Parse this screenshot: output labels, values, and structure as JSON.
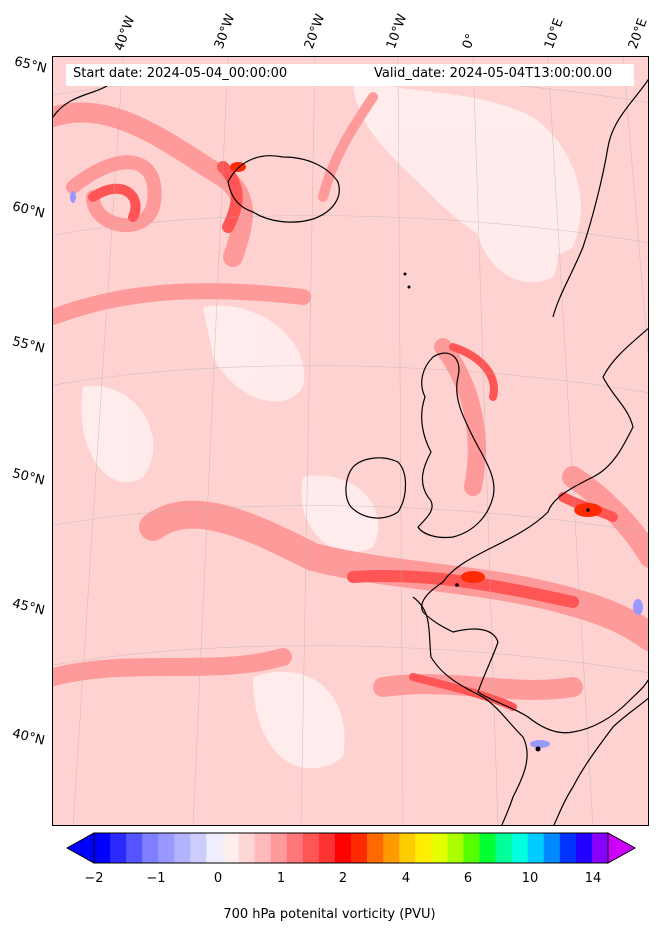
{
  "map": {
    "start_date": "Start date: 2024-05-04_00:00:00",
    "valid_date": "Valid_date: 2024-05-04T13:00:00.00",
    "longitude_labels": [
      "40°W",
      "30°W",
      "20°W",
      "10°W",
      "0°",
      "10°E",
      "20°E"
    ],
    "latitude_labels": [
      "65°N",
      "60°N",
      "55°N",
      "50°N",
      "45°N",
      "40°N"
    ],
    "background_color": "#ffd2d2",
    "coastline_color": "#000000"
  },
  "colorbar": {
    "label": "700 hPa potenital vorticity (PVU)",
    "ticks": [
      "−2",
      "−1",
      "0",
      "1",
      "2",
      "4",
      "6",
      "10",
      "14"
    ],
    "colors": [
      "#0000ff",
      "#2a2aff",
      "#5555ff",
      "#7f7fff",
      "#9999ff",
      "#b2b2ff",
      "#ccccff",
      "#eeeeff",
      "#ffeeee",
      "#ffd6d6",
      "#ffbbbb",
      "#ff9a9a",
      "#ff7777",
      "#ff5555",
      "#ff3333",
      "#ff0000",
      "#ff2a00",
      "#ff6a00",
      "#ff9a00",
      "#ffcc00",
      "#ffee00",
      "#e5ff00",
      "#aaff00",
      "#55ff00",
      "#00ff33",
      "#00ff99",
      "#00ffdd",
      "#00ccff",
      "#0088ff",
      "#0033ff",
      "#2200ff",
      "#8800ff"
    ],
    "under_color": "#0000ff",
    "over_color": "#cc00ff"
  }
}
